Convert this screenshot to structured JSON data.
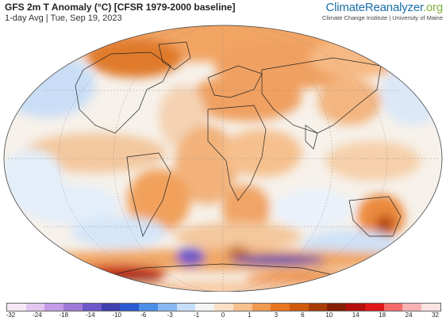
{
  "header": {
    "title": "GFS 2m T Anomaly (°C) [CFSR 1979-2000 baseline]",
    "subtitle": "1-day Avg | Tue, Sep 19, 2023"
  },
  "brand": {
    "name_main": "ClimateReanalyzer",
    "name_tld": ".org",
    "affiliation": "Climate Change Institute | University of Maine"
  },
  "legend": {
    "tick_labels": [
      "-32",
      "-24",
      "-18",
      "-14",
      "-10",
      "-6",
      "-3",
      "-1",
      "0",
      "1",
      "3",
      "6",
      "10",
      "14",
      "18",
      "24",
      "32"
    ],
    "colors": [
      "#f7e8f7",
      "#e3c6ef",
      "#c49be6",
      "#a07ad8",
      "#6e58c8",
      "#3f3fb0",
      "#2a5bcf",
      "#4d8ee6",
      "#89b8f2",
      "#c6def9",
      "#f4f4f4",
      "#fbe0c8",
      "#f8c08c",
      "#f19a52",
      "#e8761e",
      "#cf5a0a",
      "#a83c06",
      "#861e04",
      "#b50e0e",
      "#e01818",
      "#f56a6a",
      "#f9b2b2",
      "#fde2e2"
    ],
    "units": "°C"
  }
}
